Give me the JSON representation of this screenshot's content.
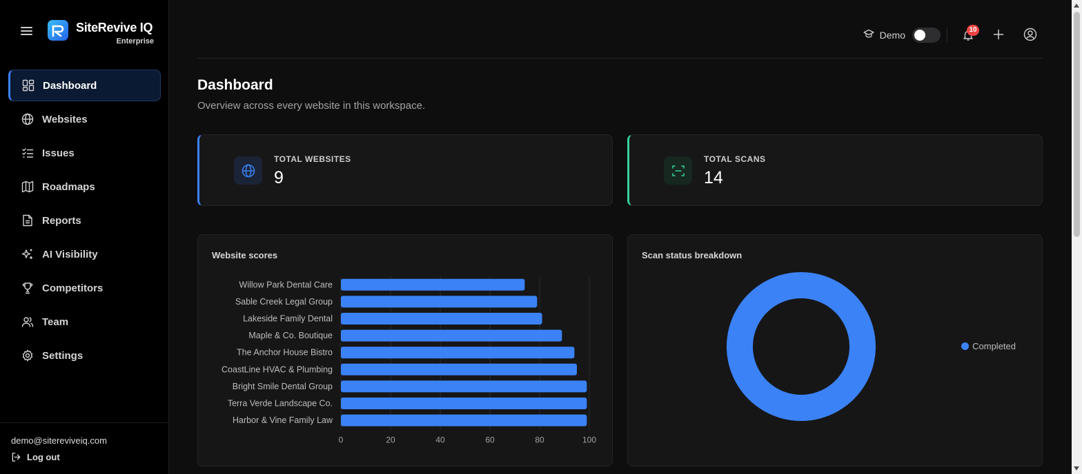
{
  "brand": {
    "name": "SiteRevive IQ",
    "tier": "Enterprise"
  },
  "sidebar": {
    "items": [
      {
        "label": "Dashboard",
        "icon": "dashboard-icon",
        "active": true
      },
      {
        "label": "Websites",
        "icon": "globe-icon"
      },
      {
        "label": "Issues",
        "icon": "checklist-icon"
      },
      {
        "label": "Roadmaps",
        "icon": "map-icon"
      },
      {
        "label": "Reports",
        "icon": "document-icon"
      },
      {
        "label": "AI Visibility",
        "icon": "sparkles-icon"
      },
      {
        "label": "Competitors",
        "icon": "trophy-icon"
      },
      {
        "label": "Team",
        "icon": "users-icon"
      },
      {
        "label": "Settings",
        "icon": "gear-icon"
      }
    ],
    "email": "demo@sitereviveiq.com",
    "logout": "Log out"
  },
  "topbar": {
    "demo_label": "Demo",
    "demo_enabled": false,
    "notifications_count": "10"
  },
  "page": {
    "title": "Dashboard",
    "subtitle": "Overview across every website in this workspace."
  },
  "stats": [
    {
      "label": "TOTAL WEBSITES",
      "value": "9",
      "icon": "globe-icon",
      "accent": "#3b82f6"
    },
    {
      "label": "TOTAL SCANS",
      "value": "14",
      "icon": "scan-icon",
      "accent": "#34d399"
    }
  ],
  "chart_data": [
    {
      "type": "bar",
      "orientation": "horizontal",
      "title": "Website scores",
      "categories": [
        "Willow Park Dental Care",
        "Sable Creek Legal Group",
        "Lakeside Family Dental",
        "Maple & Co. Boutique",
        "The Anchor House Bistro",
        "CoastLine HVAC & Plumbing",
        "Bright Smile Dental Group",
        "Terra Verde Landscape Co.",
        "Harbor & Vine Family Law"
      ],
      "values": [
        74,
        79,
        81,
        89,
        94,
        95,
        99,
        99,
        99
      ],
      "xlim": [
        0,
        100
      ],
      "xticks": [
        "0",
        "20",
        "40",
        "60",
        "80",
        "100"
      ],
      "grid": true,
      "color": "#3b82f6"
    },
    {
      "type": "pie",
      "variant": "donut",
      "title": "Scan status breakdown",
      "labels": [
        "Completed"
      ],
      "values": [
        100
      ],
      "colors": [
        "#3b82f6"
      ],
      "legend": "right"
    }
  ]
}
